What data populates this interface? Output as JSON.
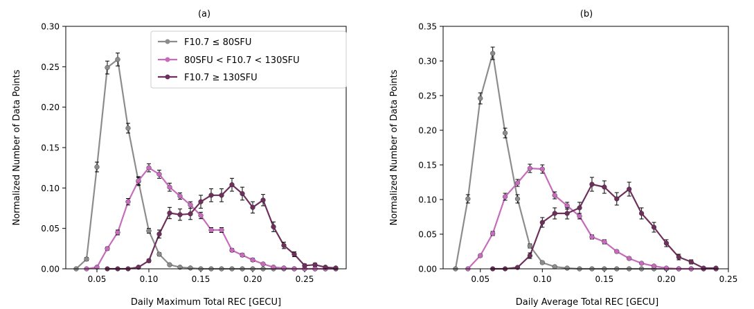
{
  "chart_data": [
    {
      "type": "line",
      "title": "(a)",
      "xlabel": "Daily Maximum Total REC [GECU]",
      "ylabel": "Normalized Number of Data Points",
      "xlim": [
        0.02,
        0.29
      ],
      "ylim": [
        0,
        0.3
      ],
      "xticks": [
        "0.05",
        "0.10",
        "0.15",
        "0.20",
        "0.25"
      ],
      "yticks": [
        "0.00",
        "0.05",
        "0.10",
        "0.15",
        "0.20",
        "0.25",
        "0.30"
      ],
      "error_bars": true,
      "grid": false,
      "legend": {
        "placement": "top-right",
        "entries": [
          "F10.7 ≤ 80SFU",
          "80SFU < F10.7 < 130SFU",
          "F10.7 ≥ 130SFU"
        ]
      },
      "series": [
        {
          "name": "F10.7 ≤ 80SFU",
          "color": "#8c8c8c",
          "x": [
            0.03,
            0.04,
            0.05,
            0.06,
            0.07,
            0.08,
            0.09,
            0.1,
            0.11,
            0.12,
            0.13,
            0.14,
            0.15,
            0.16,
            0.17,
            0.18,
            0.19,
            0.2,
            0.21,
            0.22,
            0.23,
            0.24,
            0.25,
            0.26,
            0.27,
            0.28
          ],
          "y": [
            0.0,
            0.012,
            0.126,
            0.249,
            0.259,
            0.174,
            0.108,
            0.047,
            0.018,
            0.005,
            0.002,
            0.001,
            0.0,
            0.0,
            0.0,
            0.0,
            0.0,
            0.0,
            0.0,
            0.0,
            0.0,
            0.0,
            0.0,
            0.0,
            0.0,
            0.0
          ],
          "err": [
            0.0,
            0.002,
            0.006,
            0.008,
            0.008,
            0.006,
            0.005,
            0.003,
            0.002,
            0.001,
            0.001,
            0.0,
            0.0,
            0.0,
            0.0,
            0.0,
            0.0,
            0.0,
            0.0,
            0.0,
            0.0,
            0.0,
            0.0,
            0.0,
            0.0,
            0.0
          ]
        },
        {
          "name": "80SFU < F10.7 < 130SFU",
          "color": "#c76bbd",
          "x": [
            0.04,
            0.05,
            0.06,
            0.07,
            0.08,
            0.09,
            0.1,
            0.11,
            0.12,
            0.13,
            0.14,
            0.15,
            0.16,
            0.17,
            0.18,
            0.19,
            0.2,
            0.21,
            0.22,
            0.23,
            0.24,
            0.25,
            0.26,
            0.27,
            0.28
          ],
          "y": [
            0.0,
            0.002,
            0.025,
            0.045,
            0.083,
            0.109,
            0.125,
            0.117,
            0.101,
            0.09,
            0.079,
            0.066,
            0.048,
            0.048,
            0.023,
            0.017,
            0.011,
            0.006,
            0.002,
            0.001,
            0.0,
            0.0,
            0.0,
            0.0,
            0.0
          ],
          "err": [
            0.0,
            0.001,
            0.002,
            0.003,
            0.004,
            0.005,
            0.005,
            0.005,
            0.005,
            0.004,
            0.004,
            0.004,
            0.003,
            0.003,
            0.002,
            0.002,
            0.002,
            0.001,
            0.001,
            0.001,
            0.0,
            0.0,
            0.0,
            0.0,
            0.0
          ]
        },
        {
          "name": "F10.7 ≥ 130SFU",
          "color": "#6e2f5c",
          "x": [
            0.06,
            0.07,
            0.08,
            0.09,
            0.1,
            0.11,
            0.12,
            0.13,
            0.14,
            0.15,
            0.16,
            0.17,
            0.18,
            0.19,
            0.2,
            0.21,
            0.22,
            0.23,
            0.24,
            0.25,
            0.26,
            0.27,
            0.28
          ],
          "y": [
            0.0,
            0.0,
            0.0,
            0.002,
            0.01,
            0.043,
            0.069,
            0.067,
            0.068,
            0.083,
            0.091,
            0.091,
            0.104,
            0.093,
            0.076,
            0.085,
            0.052,
            0.029,
            0.018,
            0.004,
            0.005,
            0.002,
            0.001
          ],
          "err": [
            0.0,
            0.0,
            0.0,
            0.001,
            0.002,
            0.005,
            0.007,
            0.007,
            0.007,
            0.008,
            0.008,
            0.008,
            0.008,
            0.008,
            0.007,
            0.007,
            0.006,
            0.004,
            0.003,
            0.002,
            0.002,
            0.001,
            0.001
          ]
        }
      ]
    },
    {
      "type": "line",
      "title": "(b)",
      "xlabel": "Daily Average Total REC [GECU]",
      "ylabel": "Normalized Number of Data Points",
      "xlim": [
        0.02,
        0.25
      ],
      "ylim": [
        0,
        0.35
      ],
      "xticks": [
        "0.05",
        "0.10",
        "0.15",
        "0.20",
        "0.25"
      ],
      "yticks": [
        "0.00",
        "0.05",
        "0.10",
        "0.15",
        "0.20",
        "0.25",
        "0.30",
        "0.35"
      ],
      "error_bars": true,
      "grid": false,
      "series": [
        {
          "name": "F10.7 ≤ 80SFU",
          "color": "#8c8c8c",
          "x": [
            0.03,
            0.04,
            0.05,
            0.06,
            0.07,
            0.08,
            0.09,
            0.1,
            0.11,
            0.12,
            0.13,
            0.14,
            0.15,
            0.16,
            0.17,
            0.18,
            0.19,
            0.2,
            0.21,
            0.22,
            0.23,
            0.24
          ],
          "y": [
            0.0,
            0.101,
            0.246,
            0.311,
            0.196,
            0.101,
            0.033,
            0.009,
            0.003,
            0.001,
            0.0,
            0.0,
            0.0,
            0.0,
            0.0,
            0.0,
            0.0,
            0.0,
            0.0,
            0.0,
            0.0,
            0.0
          ],
          "err": [
            0.0,
            0.006,
            0.008,
            0.009,
            0.007,
            0.006,
            0.003,
            0.002,
            0.001,
            0.0,
            0.0,
            0.0,
            0.0,
            0.0,
            0.0,
            0.0,
            0.0,
            0.0,
            0.0,
            0.0,
            0.0,
            0.0
          ]
        },
        {
          "name": "80SFU < F10.7 < 130SFU",
          "color": "#c76bbd",
          "x": [
            0.04,
            0.05,
            0.06,
            0.07,
            0.08,
            0.09,
            0.1,
            0.11,
            0.12,
            0.13,
            0.14,
            0.15,
            0.16,
            0.17,
            0.18,
            0.19,
            0.2,
            0.21,
            0.22,
            0.23,
            0.24
          ],
          "y": [
            0.0,
            0.019,
            0.051,
            0.104,
            0.124,
            0.145,
            0.144,
            0.106,
            0.091,
            0.076,
            0.046,
            0.039,
            0.025,
            0.015,
            0.008,
            0.004,
            0.001,
            0.0,
            0.0,
            0.0,
            0.0
          ],
          "err": [
            0.0,
            0.002,
            0.003,
            0.005,
            0.005,
            0.006,
            0.006,
            0.005,
            0.005,
            0.004,
            0.003,
            0.003,
            0.002,
            0.002,
            0.001,
            0.001,
            0.001,
            0.0,
            0.0,
            0.0,
            0.0
          ]
        },
        {
          "name": "F10.7 ≥ 130SFU",
          "color": "#6e2f5c",
          "x": [
            0.06,
            0.07,
            0.08,
            0.09,
            0.1,
            0.11,
            0.12,
            0.13,
            0.14,
            0.15,
            0.16,
            0.17,
            0.18,
            0.19,
            0.2,
            0.21,
            0.22,
            0.23,
            0.24
          ],
          "y": [
            0.0,
            0.0,
            0.002,
            0.019,
            0.067,
            0.08,
            0.08,
            0.088,
            0.122,
            0.118,
            0.101,
            0.115,
            0.08,
            0.06,
            0.037,
            0.017,
            0.01,
            0.001,
            0.001
          ],
          "err": [
            0.0,
            0.0,
            0.001,
            0.004,
            0.007,
            0.008,
            0.008,
            0.008,
            0.01,
            0.009,
            0.009,
            0.01,
            0.008,
            0.007,
            0.005,
            0.004,
            0.003,
            0.001,
            0.001
          ]
        }
      ]
    }
  ]
}
